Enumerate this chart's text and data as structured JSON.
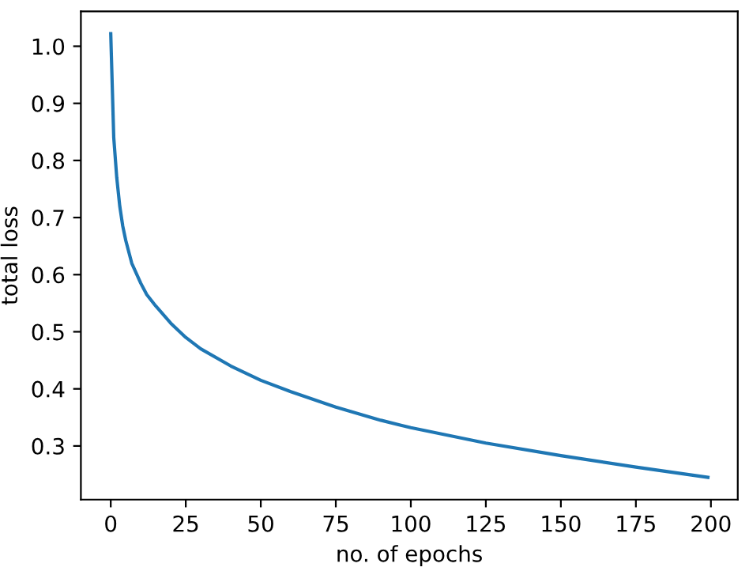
{
  "chart_data": {
    "type": "line",
    "xlabel": "no. of epochs",
    "ylabel": "total loss",
    "series": [
      {
        "color": "#1f77b4",
        "x": [
          0,
          1,
          2,
          3,
          4,
          5,
          7,
          10,
          12,
          15,
          20,
          25,
          30,
          40,
          50,
          60,
          75,
          90,
          100,
          125,
          150,
          175,
          199
        ],
        "values": [
          1.022,
          0.84,
          0.77,
          0.72,
          0.685,
          0.66,
          0.62,
          0.585,
          0.565,
          0.545,
          0.515,
          0.49,
          0.47,
          0.44,
          0.415,
          0.395,
          0.368,
          0.345,
          0.332,
          0.305,
          0.283,
          0.263,
          0.245
        ]
      }
    ],
    "xlim": [
      -9.95,
      208.95
    ],
    "ylim": [
      0.206,
      1.061
    ],
    "xticks": [
      0,
      25,
      50,
      75,
      100,
      125,
      150,
      175,
      200
    ],
    "yticks": [
      0.3,
      0.4,
      0.5,
      0.6,
      0.7,
      0.8,
      0.9,
      {
        "value": 1,
        "label": "1.0"
      }
    ],
    "grid": false,
    "marker": "none",
    "line_style": "solid"
  }
}
